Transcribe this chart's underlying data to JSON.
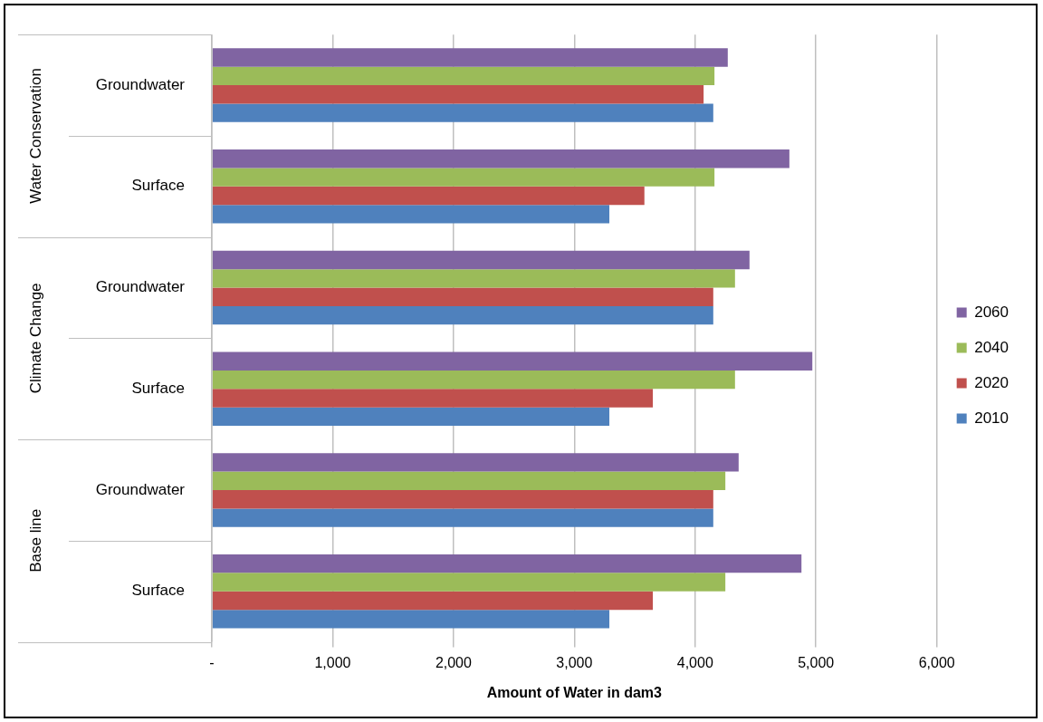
{
  "chart_data": {
    "type": "bar",
    "orientation": "horizontal",
    "xlabel": "Amount of Water in dam3",
    "categories": [
      "Groundwater",
      "Surface",
      "Groundwater",
      "Surface",
      "Groundwater",
      "Surface"
    ],
    "annotations": [
      "Water Conservation",
      "Climate Change",
      "Base line"
    ],
    "series": [
      {
        "name": "2060",
        "color": "#8064a2",
        "values": [
          4270,
          4780,
          4450,
          4970,
          4360,
          4880
        ]
      },
      {
        "name": "2040",
        "color": "#9bbb59",
        "values": [
          4160,
          4160,
          4330,
          4330,
          4250,
          4250
        ]
      },
      {
        "name": "2020",
        "color": "#c0504d",
        "values": [
          4070,
          3580,
          4150,
          3650,
          4150,
          3650
        ]
      },
      {
        "name": "2010",
        "color": "#4f81bd",
        "values": [
          4150,
          3290,
          4150,
          3290,
          4150,
          3290
        ]
      }
    ],
    "xlim": [
      0,
      6000
    ],
    "xticks": [
      {
        "value": 0,
        "label": "-"
      },
      {
        "value": 1000,
        "label": "1,000"
      },
      {
        "value": 2000,
        "label": "2,000"
      },
      {
        "value": 3000,
        "label": "3,000"
      },
      {
        "value": 4000,
        "label": "4,000"
      },
      {
        "value": 5000,
        "label": "5,000"
      },
      {
        "value": 6000,
        "label": "6,000"
      }
    ],
    "grid": "x",
    "legend": "right"
  }
}
